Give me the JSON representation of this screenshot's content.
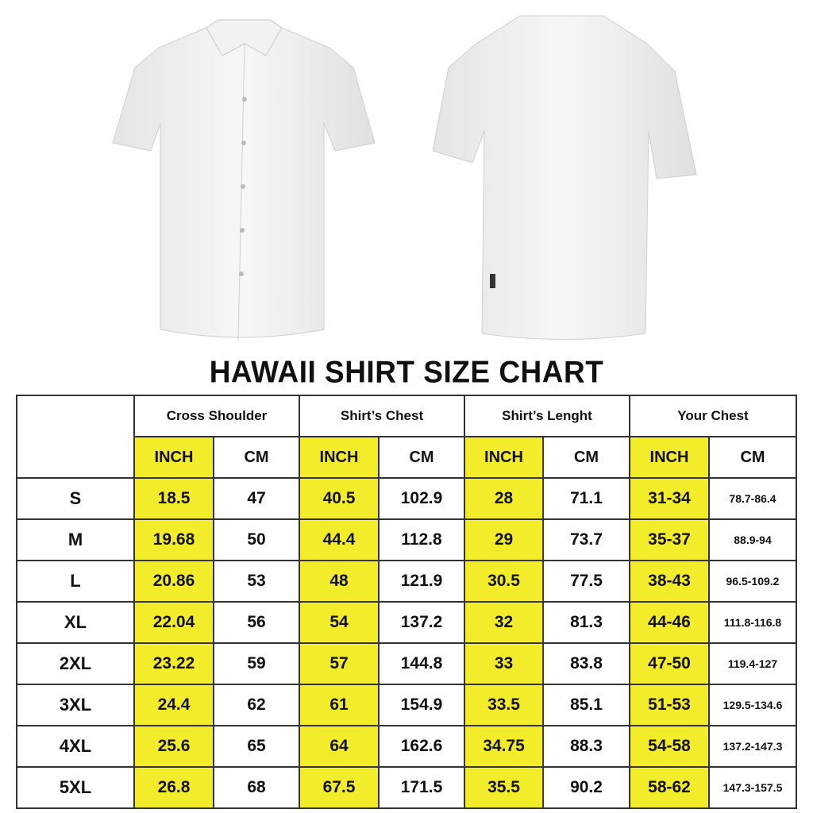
{
  "title": "HAWAII SHIRT SIZE CHART",
  "colors": {
    "highlight": "#f2ec2a",
    "border": "#333333"
  },
  "images": {
    "front": "white-shirt-front",
    "back": "white-shirt-back"
  },
  "table": {
    "groups": [
      "Cross Shoulder",
      "Shirt’s Chest",
      "Shirt’s Lenght",
      "Your Chest"
    ],
    "units": [
      "INCH",
      "CM"
    ],
    "rows": [
      {
        "size": "S",
        "values": [
          "18.5",
          "47",
          "40.5",
          "102.9",
          "28",
          "71.1",
          "31-34",
          "78.7-86.4"
        ]
      },
      {
        "size": "M",
        "values": [
          "19.68",
          "50",
          "44.4",
          "112.8",
          "29",
          "73.7",
          "35-37",
          "88.9-94"
        ]
      },
      {
        "size": "L",
        "values": [
          "20.86",
          "53",
          "48",
          "121.9",
          "30.5",
          "77.5",
          "38-43",
          "96.5-109.2"
        ]
      },
      {
        "size": "XL",
        "values": [
          "22.04",
          "56",
          "54",
          "137.2",
          "32",
          "81.3",
          "44-46",
          "111.8-116.8"
        ]
      },
      {
        "size": "2XL",
        "values": [
          "23.22",
          "59",
          "57",
          "144.8",
          "33",
          "83.8",
          "47-50",
          "119.4-127"
        ]
      },
      {
        "size": "3XL",
        "values": [
          "24.4",
          "62",
          "61",
          "154.9",
          "33.5",
          "85.1",
          "51-53",
          "129.5-134.6"
        ]
      },
      {
        "size": "4XL",
        "values": [
          "25.6",
          "65",
          "64",
          "162.6",
          "34.75",
          "88.3",
          "54-58",
          "137.2-147.3"
        ]
      },
      {
        "size": "5XL",
        "values": [
          "26.8",
          "68",
          "67.5",
          "171.5",
          "35.5",
          "90.2",
          "58-62",
          "147.3-157.5"
        ]
      }
    ]
  }
}
